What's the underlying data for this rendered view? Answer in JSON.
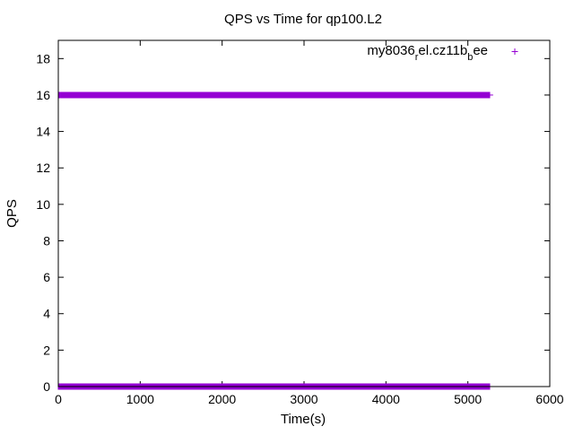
{
  "chart_data": {
    "type": "scatter",
    "title": "QPS vs Time for qp100.L2",
    "xlabel": "Time(s)",
    "ylabel": "QPS",
    "xlim": [
      0,
      6000
    ],
    "ylim": [
      0,
      19
    ],
    "x_ticks": [
      0,
      1000,
      2000,
      3000,
      4000,
      5000,
      6000
    ],
    "y_ticks": [
      0,
      2,
      4,
      6,
      8,
      10,
      12,
      14,
      16,
      18
    ],
    "grid": false,
    "legend_position": "top-right",
    "marker": "plus",
    "series": [
      {
        "name_parts": {
          "base": "my8036",
          "sub1": "r",
          "mid": "el.cz11b",
          "sub2": "b",
          "end": "ee"
        },
        "color": "#9400d3",
        "x_range": [
          0,
          5270
        ],
        "levels": [
          16,
          0
        ]
      }
    ]
  }
}
